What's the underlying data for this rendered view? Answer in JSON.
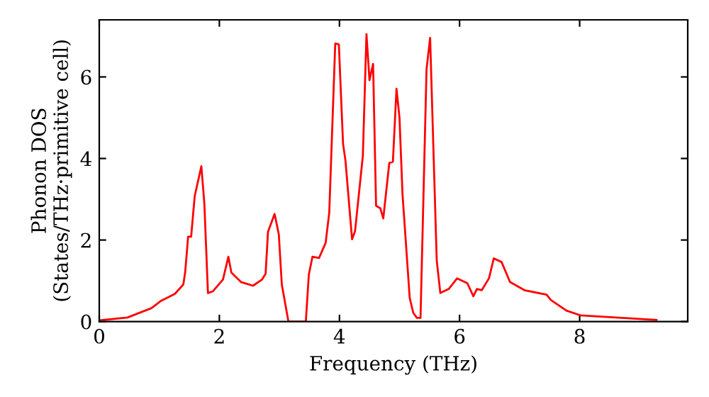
{
  "chart_data": {
    "type": "line",
    "xlabel": "Frequency (THz)",
    "ylabel": "Phonon DOS\n(States/THz·primitive cell)",
    "xlim": [
      0,
      9.8
    ],
    "ylim": [
      0,
      7.4
    ],
    "xticks": [
      0,
      2,
      4,
      6,
      8
    ],
    "yticks": [
      0,
      2,
      4,
      6
    ],
    "grid": false,
    "legend": false,
    "marker": "none",
    "line_style": "solid",
    "series": [
      {
        "color": "#ff0000",
        "x": [
          0,
          0.47,
          0.87,
          1.02,
          1.26,
          1.4,
          1.43,
          1.48,
          1.53,
          1.59,
          1.7,
          1.75,
          1.81,
          1.89,
          2.06,
          2.15,
          2.2,
          2.36,
          2.56,
          2.71,
          2.77,
          2.81,
          2.92,
          2.99,
          3.04,
          3.15,
          3.44,
          3.49,
          3.55,
          3.66,
          3.77,
          3.83,
          3.93,
          3.99,
          4.06,
          4.1,
          4.21,
          4.26,
          4.39,
          4.45,
          4.5,
          4.56,
          4.61,
          4.68,
          4.73,
          4.83,
          4.89,
          4.95,
          5.0,
          5.05,
          5.17,
          5.23,
          5.29,
          5.35,
          5.45,
          5.51,
          5.62,
          5.68,
          5.82,
          5.96,
          6.13,
          6.23,
          6.29,
          6.37,
          6.49,
          6.57,
          6.7,
          6.84,
          7.08,
          7.45,
          7.52,
          7.78,
          8.02,
          9.28
        ],
        "values": [
          0.03,
          0.1,
          0.33,
          0.5,
          0.68,
          0.91,
          1.2,
          2.08,
          2.08,
          3.08,
          3.81,
          2.9,
          0.7,
          0.74,
          1.03,
          1.59,
          1.2,
          0.97,
          0.88,
          1.03,
          1.17,
          2.2,
          2.64,
          2.14,
          0.91,
          0,
          0,
          1.15,
          1.59,
          1.56,
          1.93,
          2.67,
          6.82,
          6.8,
          4.36,
          3.95,
          2.02,
          2.22,
          4.07,
          7.05,
          5.92,
          6.32,
          2.84,
          2.78,
          2.53,
          3.89,
          3.92,
          5.71,
          5.0,
          3.13,
          0.58,
          0.21,
          0.09,
          0.09,
          6.18,
          6.96,
          1.5,
          0.7,
          0.8,
          1.06,
          0.94,
          0.62,
          0.8,
          0.77,
          1.06,
          1.55,
          1.46,
          0.97,
          0.77,
          0.66,
          0.53,
          0.27,
          0.15,
          0.04
        ]
      }
    ]
  }
}
